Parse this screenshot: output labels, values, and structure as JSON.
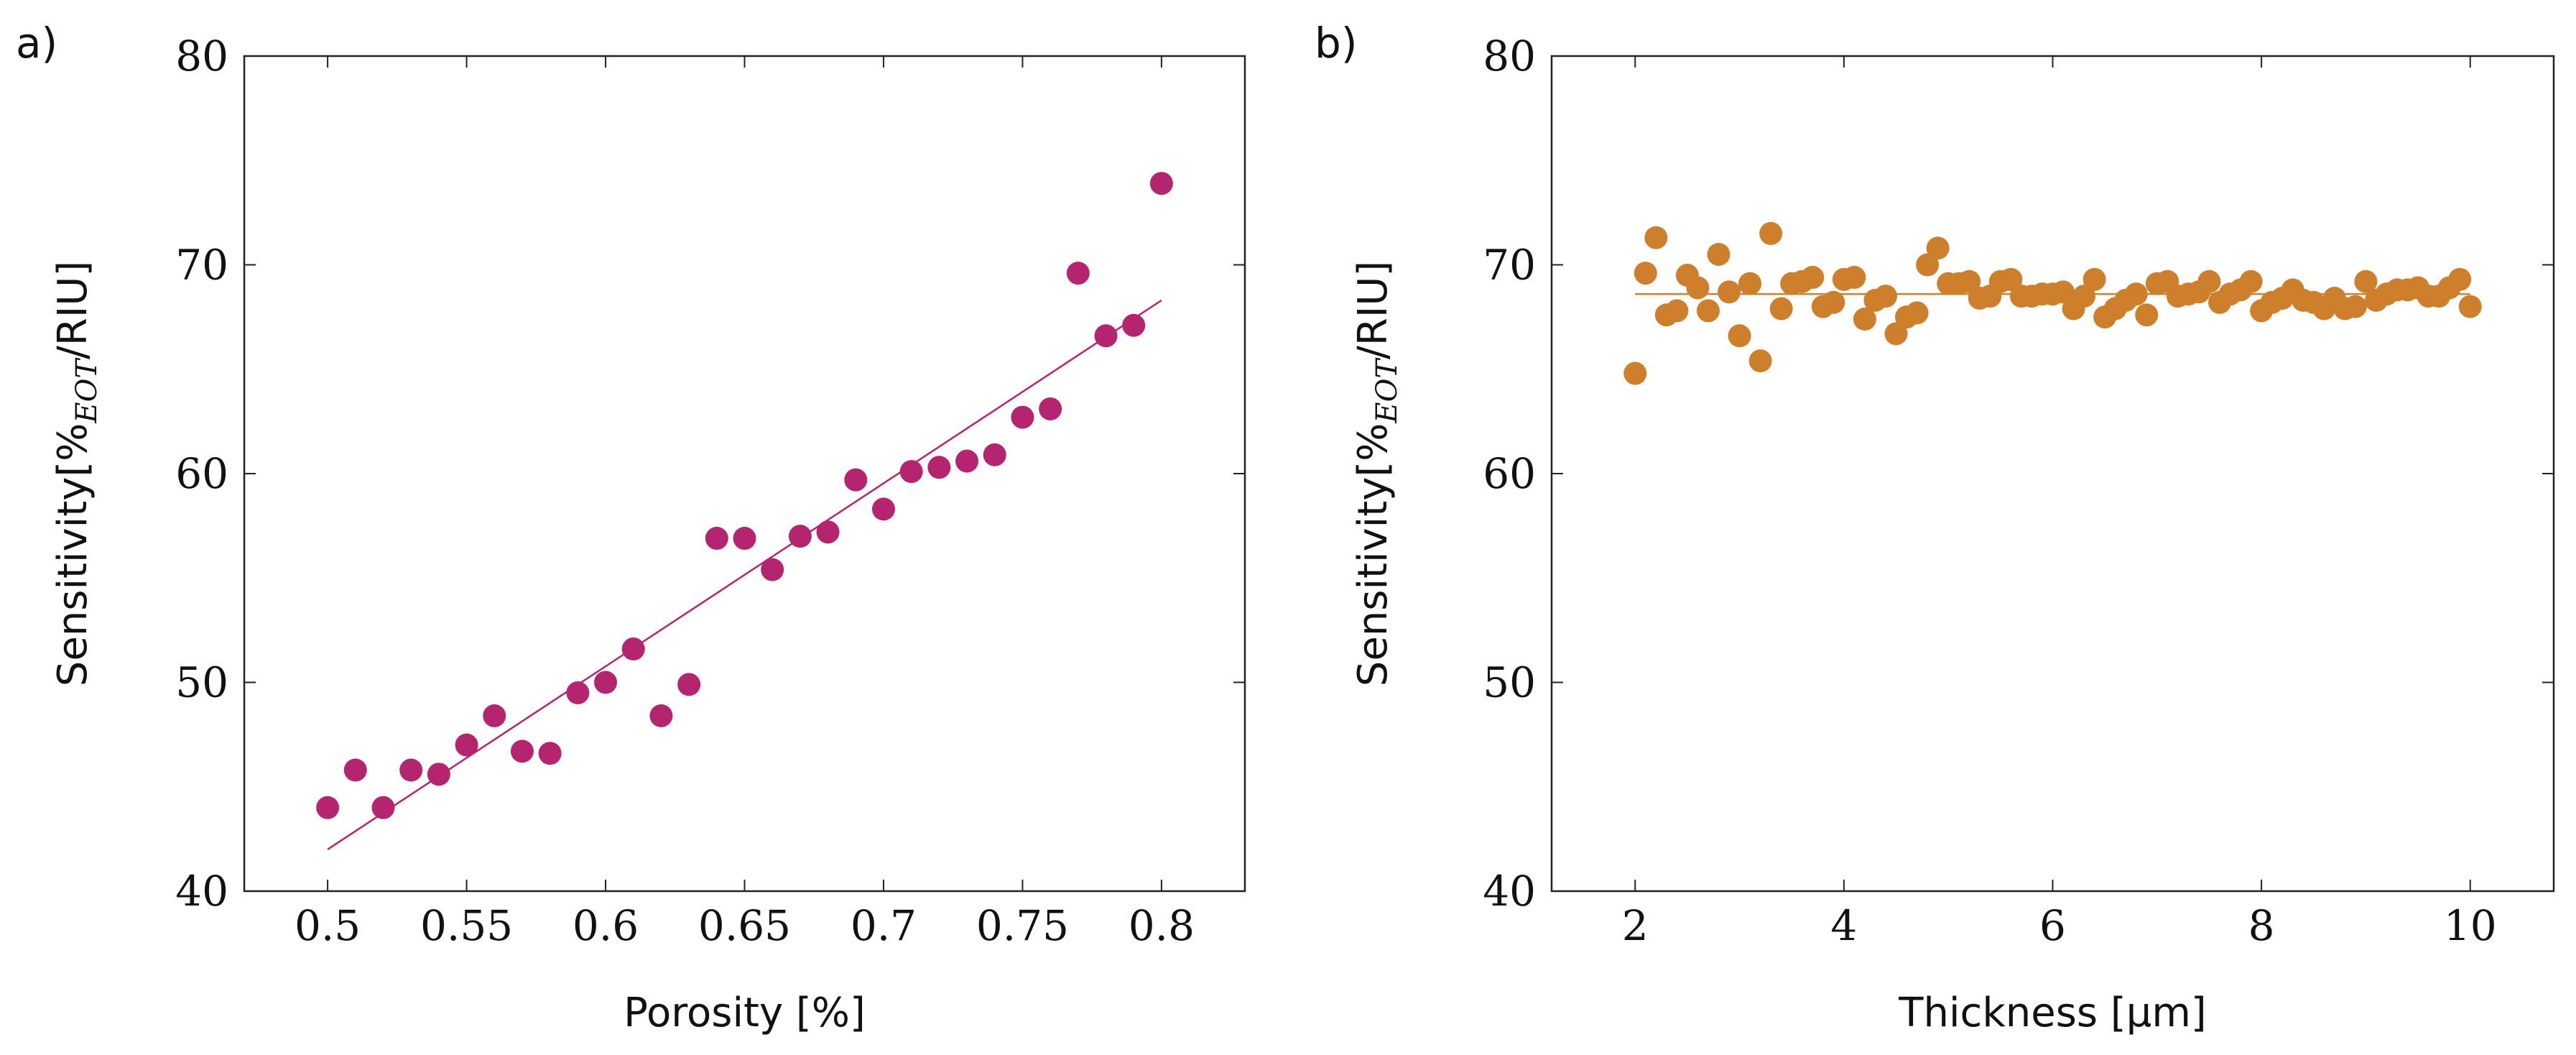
{
  "panels": [
    {
      "label": "a)"
    },
    {
      "label": "b)"
    }
  ],
  "chart_data": [
    {
      "type": "scatter",
      "panel": "a)",
      "xlabel": "Porosity [%]",
      "ylabel": {
        "prefix": "Sensitivity[%",
        "subscript": "EOT",
        "suffix": "/RIU]"
      },
      "xlim": [
        0.47,
        0.83
      ],
      "ylim": [
        40,
        80
      ],
      "xticks": [
        0.5,
        0.55,
        0.6,
        0.65,
        0.7,
        0.75,
        0.8
      ],
      "xticklabels": [
        "0.5",
        "0.55",
        "0.6",
        "0.65",
        "0.7",
        "0.75",
        "0.8"
      ],
      "yticks": [
        40,
        50,
        60,
        70,
        80
      ],
      "yticklabels": [
        "40",
        "50",
        "60",
        "70",
        "80"
      ],
      "grid": false,
      "color": "#b5256f",
      "points": [
        [
          0.5,
          44.0
        ],
        [
          0.51,
          45.8
        ],
        [
          0.52,
          44.0
        ],
        [
          0.53,
          45.8
        ],
        [
          0.54,
          45.6
        ],
        [
          0.55,
          47.0
        ],
        [
          0.56,
          48.4
        ],
        [
          0.57,
          46.7
        ],
        [
          0.58,
          46.6
        ],
        [
          0.59,
          49.5
        ],
        [
          0.6,
          50.0
        ],
        [
          0.61,
          51.6
        ],
        [
          0.62,
          48.4
        ],
        [
          0.63,
          49.9
        ],
        [
          0.64,
          56.9
        ],
        [
          0.65,
          56.9
        ],
        [
          0.66,
          55.4
        ],
        [
          0.67,
          57.0
        ],
        [
          0.68,
          57.2
        ],
        [
          0.69,
          59.7
        ],
        [
          0.7,
          58.3
        ],
        [
          0.71,
          60.1
        ],
        [
          0.72,
          60.3
        ],
        [
          0.73,
          60.6
        ],
        [
          0.74,
          60.9
        ],
        [
          0.75,
          62.7
        ],
        [
          0.76,
          63.1
        ],
        [
          0.77,
          69.6
        ],
        [
          0.78,
          66.6
        ],
        [
          0.79,
          67.1
        ],
        [
          0.8,
          73.9
        ]
      ],
      "fit_line": [
        [
          0.5,
          42.0
        ],
        [
          0.8,
          68.3
        ]
      ]
    },
    {
      "type": "scatter",
      "panel": "b)",
      "xlabel": "Thickness [μm]",
      "ylabel": {
        "prefix": "Sensitivity[%",
        "subscript": "EOT",
        "suffix": "/RIU]"
      },
      "xlim": [
        1.2,
        10.8
      ],
      "ylim": [
        40,
        80
      ],
      "xticks": [
        2,
        4,
        6,
        8,
        10
      ],
      "xticklabels": [
        "2",
        "4",
        "6",
        "8",
        "10"
      ],
      "yticks": [
        40,
        50,
        60,
        70,
        80
      ],
      "yticklabels": [
        "40",
        "50",
        "60",
        "70",
        "80"
      ],
      "grid": false,
      "color": "#cd7f2c",
      "points": [
        [
          2.0,
          64.8
        ],
        [
          2.1,
          69.6
        ],
        [
          2.2,
          71.3
        ],
        [
          2.3,
          67.6
        ],
        [
          2.4,
          67.8
        ],
        [
          2.5,
          69.5
        ],
        [
          2.6,
          68.9
        ],
        [
          2.7,
          67.8
        ],
        [
          2.8,
          70.5
        ],
        [
          2.9,
          68.7
        ],
        [
          3.0,
          66.6
        ],
        [
          3.1,
          69.1
        ],
        [
          3.2,
          65.4
        ],
        [
          3.3,
          71.5
        ],
        [
          3.4,
          67.9
        ],
        [
          3.5,
          69.1
        ],
        [
          3.6,
          69.2
        ],
        [
          3.7,
          69.4
        ],
        [
          3.8,
          68.0
        ],
        [
          3.9,
          68.2
        ],
        [
          4.0,
          69.3
        ],
        [
          4.1,
          69.4
        ],
        [
          4.2,
          67.4
        ],
        [
          4.3,
          68.3
        ],
        [
          4.4,
          68.5
        ],
        [
          4.5,
          66.7
        ],
        [
          4.6,
          67.5
        ],
        [
          4.7,
          67.7
        ],
        [
          4.8,
          70.0
        ],
        [
          4.9,
          70.8
        ],
        [
          5.0,
          69.1
        ],
        [
          5.1,
          69.1
        ],
        [
          5.2,
          69.2
        ],
        [
          5.3,
          68.4
        ],
        [
          5.4,
          68.5
        ],
        [
          5.5,
          69.2
        ],
        [
          5.6,
          69.3
        ],
        [
          5.7,
          68.5
        ],
        [
          5.8,
          68.5
        ],
        [
          5.9,
          68.6
        ],
        [
          6.0,
          68.6
        ],
        [
          6.1,
          68.7
        ],
        [
          6.2,
          67.9
        ],
        [
          6.3,
          68.5
        ],
        [
          6.4,
          69.3
        ],
        [
          6.5,
          67.5
        ],
        [
          6.6,
          67.9
        ],
        [
          6.7,
          68.3
        ],
        [
          6.8,
          68.6
        ],
        [
          6.9,
          67.6
        ],
        [
          7.0,
          69.1
        ],
        [
          7.1,
          69.2
        ],
        [
          7.2,
          68.5
        ],
        [
          7.3,
          68.6
        ],
        [
          7.4,
          68.7
        ],
        [
          7.5,
          69.2
        ],
        [
          7.6,
          68.2
        ],
        [
          7.7,
          68.6
        ],
        [
          7.8,
          68.8
        ],
        [
          7.9,
          69.2
        ],
        [
          8.0,
          67.8
        ],
        [
          8.1,
          68.2
        ],
        [
          8.2,
          68.4
        ],
        [
          8.3,
          68.8
        ],
        [
          8.4,
          68.3
        ],
        [
          8.5,
          68.2
        ],
        [
          8.6,
          67.9
        ],
        [
          8.7,
          68.4
        ],
        [
          8.8,
          67.9
        ],
        [
          8.9,
          68.0
        ],
        [
          9.0,
          69.2
        ],
        [
          9.1,
          68.3
        ],
        [
          9.2,
          68.6
        ],
        [
          9.3,
          68.8
        ],
        [
          9.4,
          68.8
        ],
        [
          9.5,
          68.9
        ],
        [
          9.6,
          68.5
        ],
        [
          9.7,
          68.5
        ],
        [
          9.8,
          68.9
        ],
        [
          9.9,
          69.3
        ],
        [
          10.0,
          68.0
        ]
      ],
      "fit_line": [
        [
          2.0,
          68.6
        ],
        [
          10.0,
          68.6
        ]
      ]
    }
  ]
}
